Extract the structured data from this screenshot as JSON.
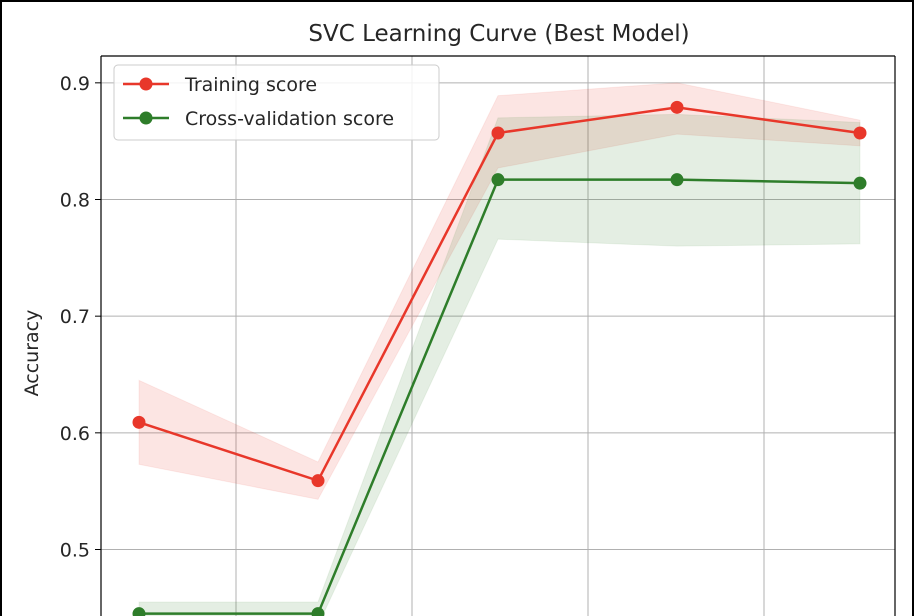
{
  "chart_data": {
    "type": "line",
    "title": "SVC Learning Curve (Best Model)",
    "xlabel": "",
    "ylabel": "Accuracy",
    "ylim": [
      0.443,
      0.923
    ],
    "yticks": [
      0.5,
      0.6,
      0.7,
      0.8,
      0.9
    ],
    "ytick_labels": [
      "0.5",
      "0.6",
      "0.7",
      "0.8",
      "0.9"
    ],
    "x": [
      1,
      2,
      3,
      4,
      5
    ],
    "grid": true,
    "legend_position": "top-left",
    "series": [
      {
        "name": "Training score",
        "color": "#e8372a",
        "values": [
          0.609,
          0.559,
          0.857,
          0.879,
          0.857
        ],
        "band_low": [
          0.573,
          0.543,
          0.827,
          0.856,
          0.846
        ],
        "band_high": [
          0.645,
          0.575,
          0.889,
          0.9,
          0.868
        ]
      },
      {
        "name": "Cross-validation score",
        "color": "#2e7d2a",
        "values": [
          0.445,
          0.445,
          0.817,
          0.817,
          0.814
        ],
        "band_low": [
          0.435,
          0.435,
          0.766,
          0.76,
          0.762
        ],
        "band_high": [
          0.455,
          0.455,
          0.87,
          0.873,
          0.866
        ]
      }
    ]
  }
}
